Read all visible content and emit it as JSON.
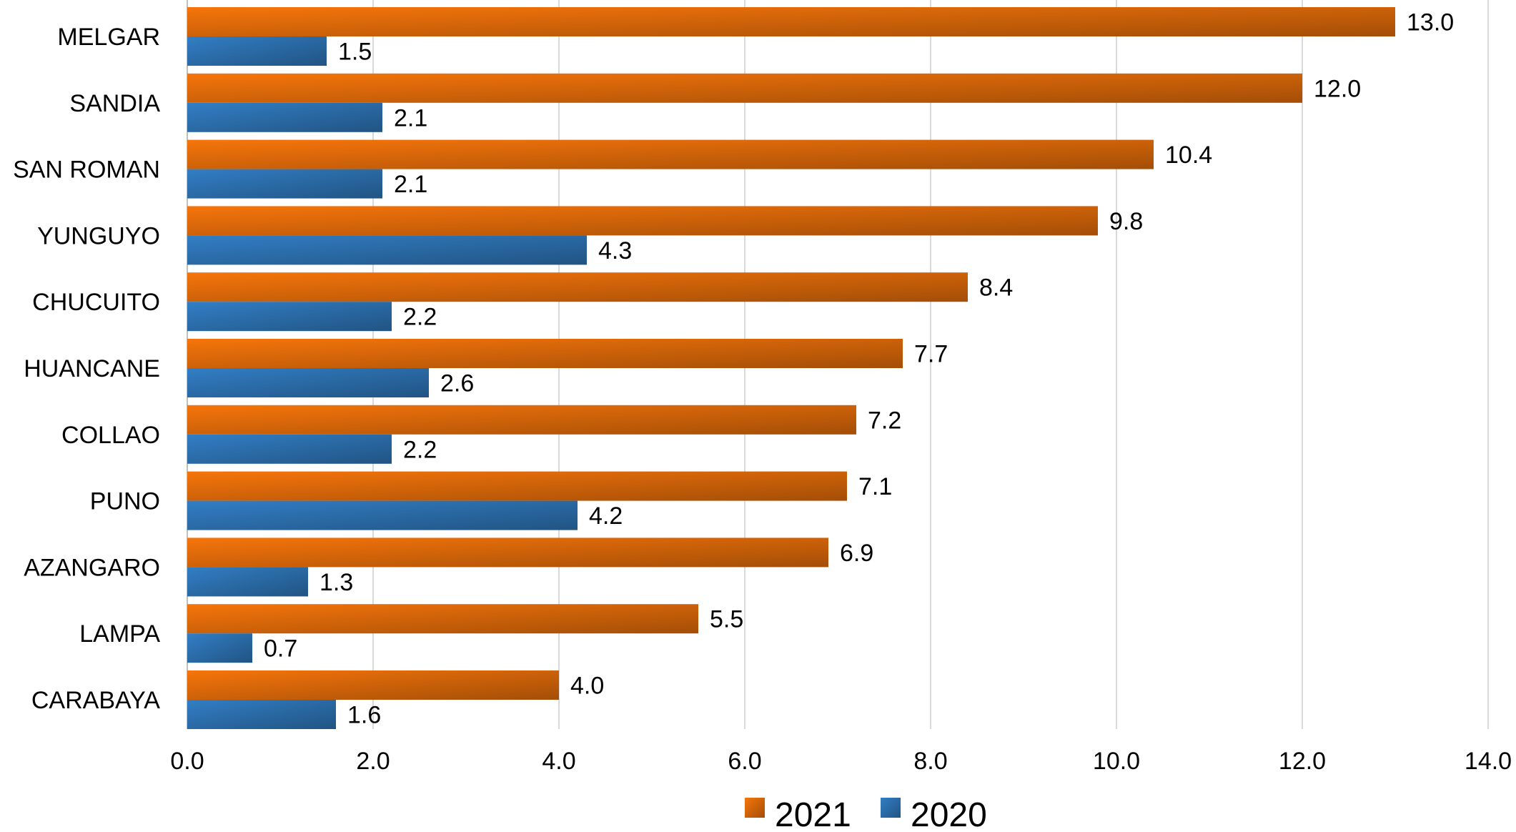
{
  "chart_data": {
    "type": "bar",
    "orientation": "horizontal",
    "categories": [
      "MELGAR",
      "SANDIA",
      "SAN ROMAN",
      "YUNGUYO",
      "CHUCUITO",
      "HUANCANE",
      "COLLAO",
      "PUNO",
      "AZANGARO",
      "LAMPA",
      "CARABAYA"
    ],
    "series": [
      {
        "name": "2021",
        "color": "#E46C0A",
        "values": [
          13.0,
          12.0,
          10.4,
          9.8,
          8.4,
          7.7,
          7.2,
          7.1,
          6.9,
          5.5,
          4.0
        ],
        "labels": [
          "13.0",
          "12.0",
          "10.4",
          "9.8",
          "8.4",
          "7.7",
          "7.2",
          "7.1",
          "6.9",
          "5.5",
          "4.0"
        ]
      },
      {
        "name": "2020",
        "color": "#2E75B6",
        "values": [
          1.5,
          2.1,
          2.1,
          4.3,
          2.2,
          2.6,
          2.2,
          4.2,
          1.3,
          0.7,
          1.6
        ],
        "labels": [
          "1.5",
          "2.1",
          "2.1",
          "4.3",
          "2.2",
          "2.6",
          "2.2",
          "4.2",
          "1.3",
          "0.7",
          "1.6"
        ]
      }
    ],
    "title": "",
    "xlabel": "",
    "ylabel": "",
    "xlim": [
      0,
      14
    ],
    "xticks": [
      0,
      2,
      4,
      6,
      8,
      10,
      12,
      14
    ],
    "xtick_labels": [
      "0.0",
      "2.0",
      "4.0",
      "6.0",
      "8.0",
      "10.0",
      "12.0",
      "14.0"
    ],
    "grid": "vertical",
    "legend": "bottom-center",
    "legend_items": [
      "2021",
      "2020"
    ]
  }
}
